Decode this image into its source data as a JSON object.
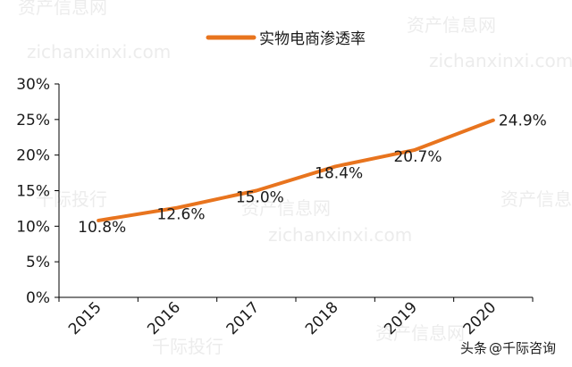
{
  "chart_data": {
    "type": "line",
    "title": "",
    "xlabel": "",
    "ylabel": "",
    "categories": [
      "2015",
      "2016",
      "2017",
      "2018",
      "2019",
      "2020"
    ],
    "series": [
      {
        "name": "实物电商渗透率",
        "values": [
          10.8,
          12.6,
          15.0,
          18.4,
          20.7,
          24.9
        ],
        "labels": [
          "10.8%",
          "12.6%",
          "15.0%",
          "18.4%",
          "20.7%",
          "24.9%"
        ],
        "color": "#E8741E"
      }
    ],
    "ylim": [
      0,
      30
    ],
    "yticks": [
      0,
      5,
      10,
      15,
      20,
      25,
      30
    ],
    "ytick_labels": [
      "0%",
      "5%",
      "10%",
      "15%",
      "20%",
      "25%",
      "30%"
    ],
    "legend_position": "top-center",
    "grid": false
  },
  "watermark": {
    "texts": [
      "资产信息网",
      "千际投行",
      "zichanxinxi.com"
    ]
  },
  "footer": {
    "source_prefix": "头条",
    "source_handle": "@千际咨询"
  }
}
